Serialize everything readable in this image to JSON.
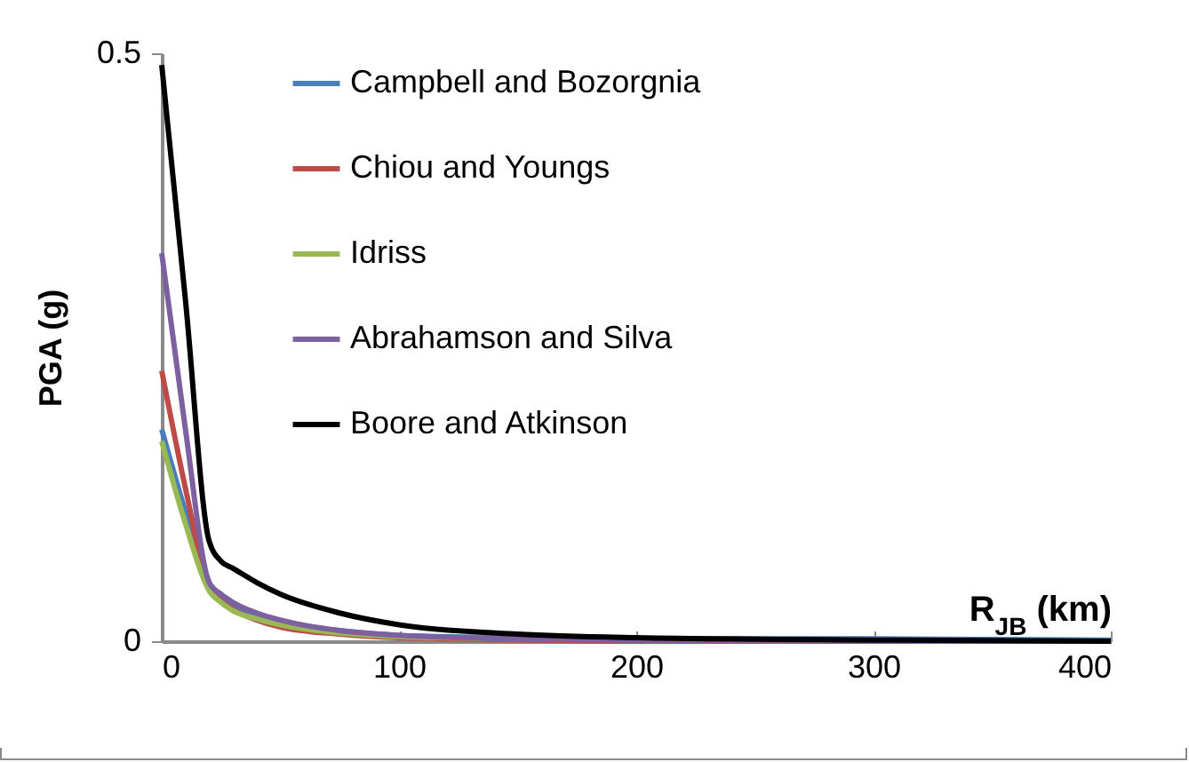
{
  "chart_data": {
    "type": "line",
    "ylabel": "PGA (g)",
    "xlabel": "R$_{JB}$ (km)",
    "xlim": [
      0,
      400
    ],
    "xticks": [
      0,
      100,
      200,
      300,
      400
    ],
    "ylim": [
      0,
      0.5
    ],
    "yticks": [
      0,
      0.5
    ],
    "legend": "top",
    "x": [
      0,
      10,
      20,
      25,
      30,
      40,
      50,
      75,
      100,
      150,
      200,
      300,
      400
    ],
    "series": [
      {
        "name": "Campbell and Bozorgnia",
        "color": "#4a7ebb",
        "values": [
          0.18,
          0.11,
          0.047,
          0.036,
          0.029,
          0.021,
          0.016,
          0.009,
          0.005,
          0.003,
          0.002,
          0.002,
          0.001
        ]
      },
      {
        "name": "Chiou and Youngs",
        "color": "#be4b48",
        "values": [
          0.23,
          0.13,
          0.045,
          0.034,
          0.027,
          0.018,
          0.012,
          0.006,
          0.003,
          0.001,
          0,
          0,
          0
        ]
      },
      {
        "name": "Idriss",
        "color": "#98b954",
        "values": [
          0.17,
          0.1,
          0.043,
          0.033,
          0.026,
          0.019,
          0.014,
          0.007,
          0.004,
          0.002,
          null,
          null,
          null
        ]
      },
      {
        "name": "Abrahamson and Silva",
        "color": "#7d60a0",
        "values": [
          0.33,
          0.18,
          0.05,
          0.04,
          0.033,
          0.024,
          0.018,
          0.009,
          0.005,
          0.002,
          0.001,
          0,
          0
        ]
      },
      {
        "name": "Boore and Atkinson",
        "color": "#000000",
        "values": [
          0.49,
          0.29,
          0.085,
          0.068,
          0.062,
          0.05,
          0.04,
          0.024,
          0.014,
          0.006,
          0.003,
          0.001,
          0
        ]
      }
    ]
  }
}
